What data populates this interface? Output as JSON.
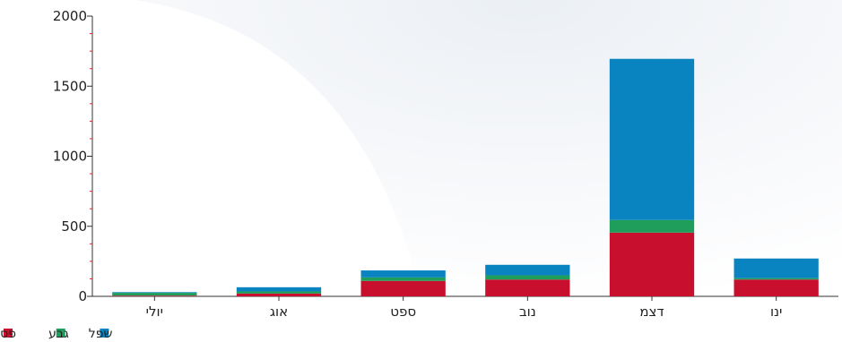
{
  "chart_data": {
    "type": "bar",
    "stacked": true,
    "categories": [
      "יולי",
      "אוג",
      "ספט",
      "נוב",
      "דצמ",
      "ינו"
    ],
    "series": [
      {
        "name": "פסגה",
        "color": "#c8102e",
        "values": [
          5,
          20,
          110,
          120,
          455,
          120
        ]
      },
      {
        "name": "גבע",
        "color": "#1e9e5a",
        "values": [
          20,
          15,
          25,
          30,
          90,
          10
        ]
      },
      {
        "name": "שפל",
        "color": "#0a84c1",
        "values": [
          5,
          30,
          50,
          75,
          1150,
          140
        ]
      }
    ],
    "ylim": [
      0,
      2000
    ],
    "yticks": [
      0,
      500,
      1000,
      1500,
      2000
    ],
    "legend": "bottom-left",
    "grid": false
  }
}
